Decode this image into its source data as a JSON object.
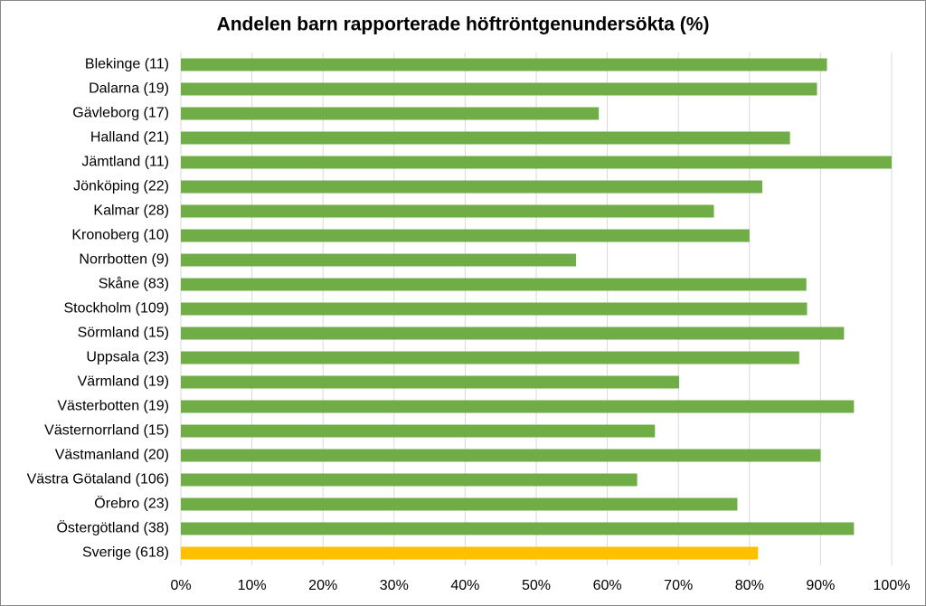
{
  "chart_data": {
    "type": "hbar",
    "title": "Andelen barn rapporterade höftröntgenundersökta (%)",
    "categories": [
      "Blekinge (11)",
      "Dalarna (19)",
      "Gävleborg (17)",
      "Halland (21)",
      "Jämtland (11)",
      "Jönköping (22)",
      "Kalmar (28)",
      "Kronoberg (10)",
      "Norrbotten (9)",
      "Skåne (83)",
      "Stockholm (109)",
      "Sörmland (15)",
      "Uppsala (23)",
      "Värmland (19)",
      "Västerbotten (19)",
      "Västernorrland (15)",
      "Västmanland (20)",
      "Västra Götaland (106)",
      "Örebro (23)",
      "Östergötland (38)",
      "Sverige (618)"
    ],
    "values": [
      90.9,
      89.5,
      58.8,
      85.7,
      100,
      81.8,
      75,
      80,
      55.6,
      88,
      88.1,
      93.3,
      87,
      70.1,
      94.7,
      66.7,
      90,
      64.2,
      78.3,
      94.7,
      81.2
    ],
    "colors": [
      "#70ad47",
      "#70ad47",
      "#70ad47",
      "#70ad47",
      "#70ad47",
      "#70ad47",
      "#70ad47",
      "#70ad47",
      "#70ad47",
      "#70ad47",
      "#70ad47",
      "#70ad47",
      "#70ad47",
      "#70ad47",
      "#70ad47",
      "#70ad47",
      "#70ad47",
      "#70ad47",
      "#70ad47",
      "#70ad47",
      "#ffc000"
    ],
    "xlim": [
      0,
      100
    ],
    "xticks": [
      {
        "value": 0,
        "label": "0%"
      },
      {
        "value": 10,
        "label": "10%"
      },
      {
        "value": 20,
        "label": "20%"
      },
      {
        "value": 30,
        "label": "30%"
      },
      {
        "value": 40,
        "label": "40%"
      },
      {
        "value": 50,
        "label": "50%"
      },
      {
        "value": 60,
        "label": "60%"
      },
      {
        "value": 70,
        "label": "70%"
      },
      {
        "value": 80,
        "label": "80%"
      },
      {
        "value": 90,
        "label": "90%"
      },
      {
        "value": 100,
        "label": "100%"
      }
    ],
    "grid": true
  }
}
